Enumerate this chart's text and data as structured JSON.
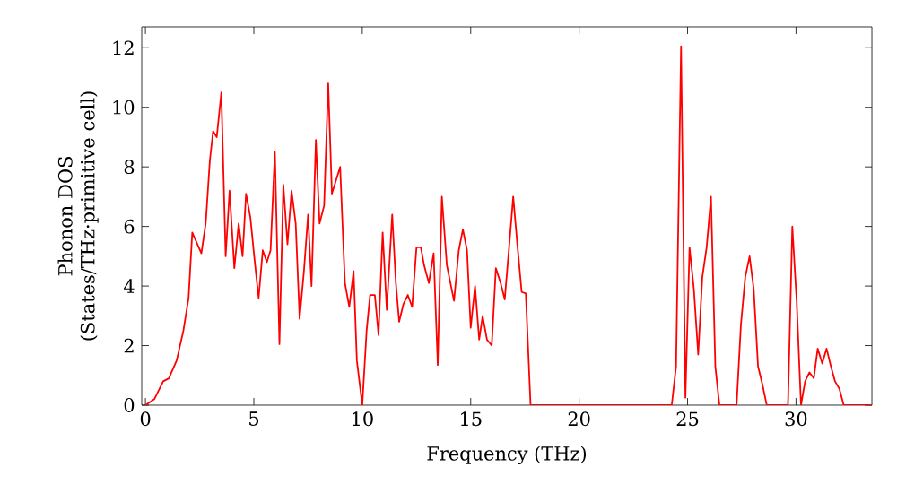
{
  "chart_data": {
    "type": "line",
    "xlabel": "Frequency (THz)",
    "ylabel": "Phonon DOS (States/THz·primitive cell)",
    "xlim": [
      -0.17,
      33.5
    ],
    "ylim": [
      0,
      12.7
    ],
    "xticks": [
      0,
      5,
      10,
      15,
      20,
      25,
      30
    ],
    "yticks": [
      0,
      2,
      4,
      6,
      8,
      10,
      12
    ],
    "grid": false,
    "marker": "none",
    "line_style": "solid",
    "x": [
      0,
      0.41,
      0.82,
      1.08,
      1.44,
      1.75,
      1.99,
      2.16,
      2.58,
      2.78,
      2.97,
      3.12,
      3.29,
      3.5,
      3.7,
      3.88,
      4.1,
      4.3,
      4.48,
      4.64,
      4.84,
      5.03,
      5.22,
      5.41,
      5.6,
      5.77,
      5.97,
      6.18,
      6.36,
      6.55,
      6.74,
      6.93,
      7.11,
      7.31,
      7.5,
      7.66,
      7.86,
      8.03,
      8.24,
      8.43,
      8.6,
      8.98,
      9.2,
      9.4,
      9.6,
      9.75,
      10.0,
      10.2,
      10.36,
      10.58,
      10.75,
      10.94,
      11.13,
      11.38,
      11.55,
      11.7,
      11.9,
      12.1,
      12.3,
      12.5,
      12.7,
      12.85,
      13.07,
      13.29,
      13.48,
      13.67,
      13.9,
      14.23,
      14.45,
      14.64,
      14.83,
      15.0,
      15.2,
      15.39,
      15.55,
      15.75,
      15.97,
      16.16,
      16.38,
      16.57,
      16.77,
      16.96,
      17.15,
      17.35,
      17.54,
      17.76,
      24.27,
      24.47,
      24.7,
      24.9,
      25.09,
      25.29,
      25.49,
      25.68,
      25.88,
      26.08,
      26.28,
      26.47,
      27.26,
      27.46,
      27.66,
      27.86,
      28.05,
      28.25,
      28.45,
      28.65,
      29.63,
      29.83,
      30.03,
      30.23,
      30.42,
      30.62,
      30.82,
      31.0,
      31.21,
      31.41,
      31.61,
      31.8,
      32.0,
      32.2,
      33.5
    ],
    "series": [
      {
        "color": "#ff0000",
        "values": [
          0,
          0.2,
          0.8,
          0.9,
          1.5,
          2.5,
          3.6,
          5.8,
          5.1,
          6.1,
          8.2,
          9.2,
          9.0,
          10.5,
          5.0,
          7.2,
          4.6,
          6.1,
          5.0,
          7.1,
          6.3,
          4.9,
          3.6,
          5.2,
          4.8,
          5.2,
          8.5,
          2.05,
          7.4,
          5.4,
          7.2,
          6.1,
          2.9,
          4.5,
          6.4,
          4.0,
          8.9,
          6.1,
          6.7,
          10.8,
          7.1,
          8.0,
          4.1,
          3.3,
          4.5,
          1.5,
          0,
          2.5,
          3.7,
          3.7,
          2.35,
          5.8,
          3.2,
          6.4,
          4.1,
          2.8,
          3.4,
          3.7,
          3.3,
          5.3,
          5.3,
          4.7,
          4.1,
          5.1,
          1.35,
          7.0,
          4.7,
          3.5,
          5.2,
          5.9,
          5.2,
          2.6,
          4.0,
          2.2,
          3.0,
          2.2,
          2.0,
          4.6,
          4.1,
          3.55,
          5.3,
          7.0,
          5.4,
          3.8,
          3.75,
          0,
          0,
          1.3,
          12.05,
          0.25,
          5.3,
          3.9,
          1.7,
          4.3,
          5.3,
          7.0,
          1.3,
          0,
          0,
          2.7,
          4.3,
          5.0,
          3.9,
          1.3,
          0.7,
          0,
          0,
          6.0,
          3.5,
          0,
          0.8,
          1.1,
          0.9,
          1.9,
          1.4,
          1.9,
          1.3,
          0.8,
          0.55,
          0,
          0
        ]
      }
    ]
  }
}
